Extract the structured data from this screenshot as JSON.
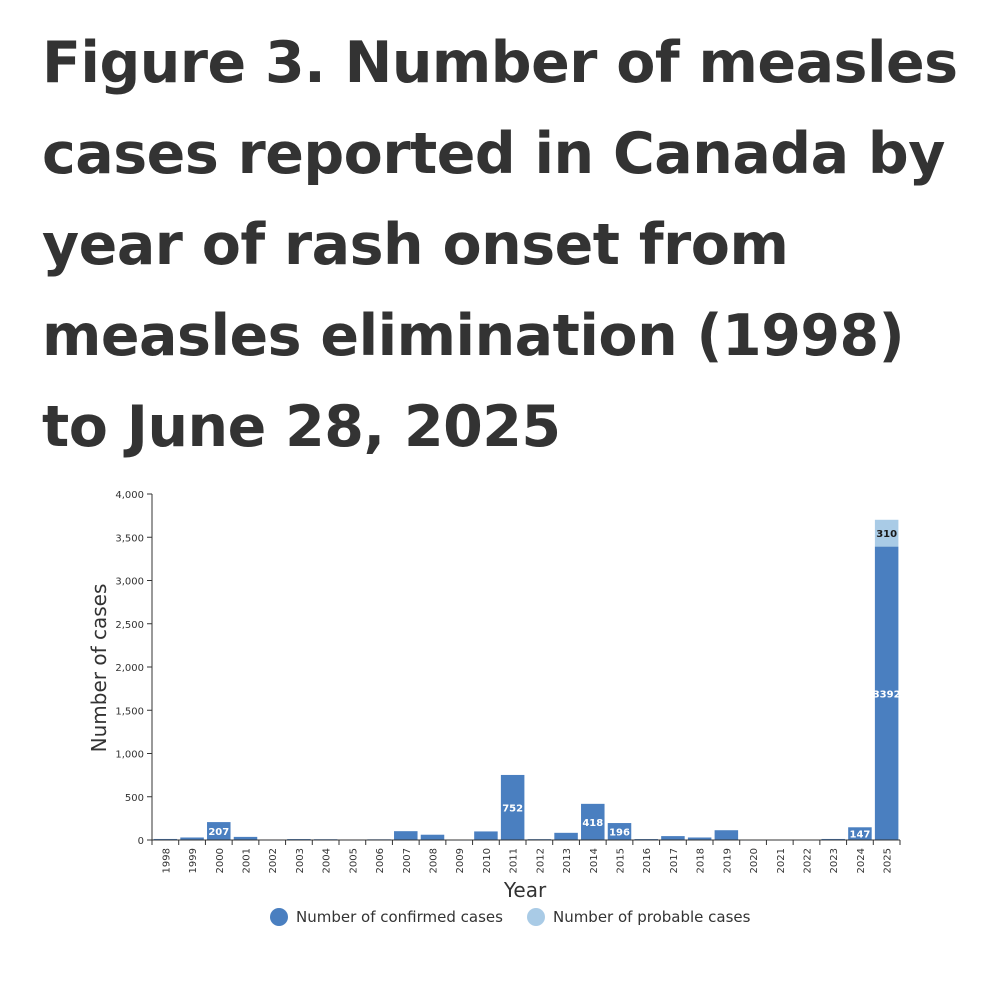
{
  "page": {
    "title": "Figure 3. Number of measles cases reported in Canada by year of rash onset from measles elimination (1998) to June 28, 2025"
  },
  "colors": {
    "confirmed": "#4a7fc0",
    "probable": "#a9cbe6",
    "axis": "#333333"
  },
  "chart_data": {
    "type": "bar",
    "stacked": true,
    "title": "",
    "xlabel": "Year",
    "ylabel": "Number of cases",
    "ylim": [
      0,
      4000
    ],
    "yticks": [
      "0",
      "500",
      "1,000",
      "1,500",
      "2,000",
      "2,500",
      "3,000",
      "3,500",
      "4,000"
    ],
    "categories": [
      "1998",
      "1999",
      "2000",
      "2001",
      "2002",
      "2003",
      "2004",
      "2005",
      "2006",
      "2007",
      "2008",
      "2009",
      "2010",
      "2011",
      "2012",
      "2013",
      "2014",
      "2015",
      "2016",
      "2017",
      "2018",
      "2019",
      "2020",
      "2021",
      "2022",
      "2023",
      "2024",
      "2025"
    ],
    "series": [
      {
        "name": "Number of confirmed cases",
        "values": [
          12,
          29,
          207,
          36,
          6,
          11,
          9,
          6,
          8,
          102,
          61,
          1,
          99,
          752,
          10,
          83,
          418,
          196,
          11,
          45,
          29,
          113,
          1,
          0,
          3,
          12,
          147,
          3392
        ]
      },
      {
        "name": "Number of probable cases",
        "values": [
          0,
          0,
          0,
          0,
          0,
          0,
          0,
          0,
          0,
          0,
          0,
          0,
          0,
          0,
          0,
          0,
          0,
          0,
          0,
          0,
          0,
          0,
          0,
          0,
          0,
          0,
          0,
          310
        ]
      }
    ],
    "data_labels": [
      {
        "series": 0,
        "category": "2000",
        "text": "207"
      },
      {
        "series": 0,
        "category": "2011",
        "text": "752"
      },
      {
        "series": 0,
        "category": "2014",
        "text": "418"
      },
      {
        "series": 0,
        "category": "2015",
        "text": "196"
      },
      {
        "series": 0,
        "category": "2024",
        "text": "147"
      },
      {
        "series": 0,
        "category": "2025",
        "text": "3392"
      },
      {
        "series": 1,
        "category": "2025",
        "text": "310"
      }
    ],
    "legend": [
      "Number of confirmed cases",
      "Number of probable cases"
    ],
    "legend_position": "bottom"
  }
}
